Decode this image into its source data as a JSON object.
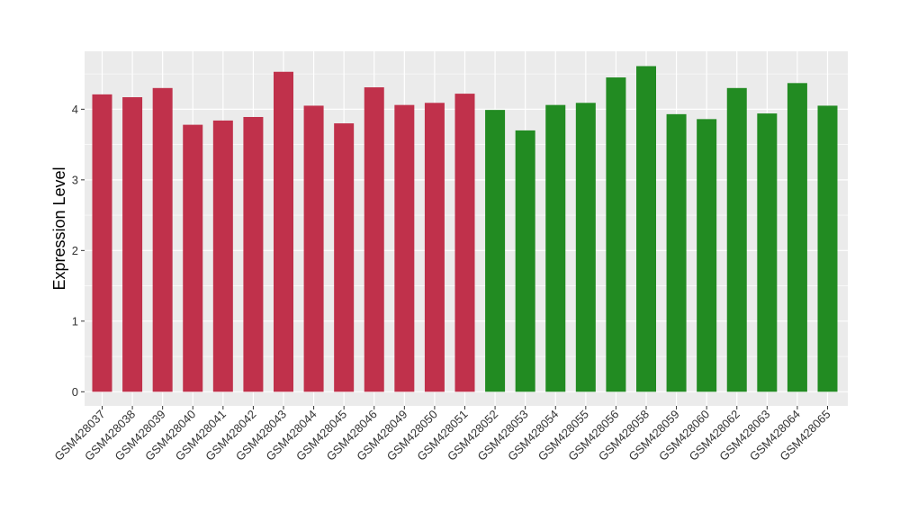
{
  "chart_data": {
    "type": "bar",
    "title": "",
    "xlabel": "",
    "ylabel": "Expression Level",
    "ylim": [
      -0.2,
      4.82
    ],
    "yticks": [
      0,
      1,
      2,
      3,
      4
    ],
    "grid": true,
    "legend": "none",
    "colors": {
      "group1": "#C0314B",
      "group2": "#228B22",
      "panel": "#EBEBEB",
      "grid": "#FFFFFF"
    },
    "categories": [
      "GSM428037",
      "GSM428038",
      "GSM428039",
      "GSM428040",
      "GSM428041",
      "GSM428042",
      "GSM428043",
      "GSM428044",
      "GSM428045",
      "GSM428046",
      "GSM428049",
      "GSM428050",
      "GSM428051",
      "GSM428052",
      "GSM428053",
      "GSM428054",
      "GSM428055",
      "GSM428056",
      "GSM428058",
      "GSM428059",
      "GSM428060",
      "GSM428062",
      "GSM428063",
      "GSM428064",
      "GSM428065"
    ],
    "values": [
      4.21,
      4.17,
      4.3,
      3.78,
      3.84,
      3.89,
      4.53,
      4.05,
      3.8,
      4.31,
      4.06,
      4.09,
      4.22,
      3.99,
      3.7,
      4.06,
      4.09,
      4.45,
      4.61,
      3.93,
      3.86,
      4.3,
      3.94,
      4.37,
      4.05
    ],
    "groups": [
      1,
      1,
      1,
      1,
      1,
      1,
      1,
      1,
      1,
      1,
      1,
      1,
      1,
      2,
      2,
      2,
      2,
      2,
      2,
      2,
      2,
      2,
      2,
      2,
      2
    ]
  }
}
